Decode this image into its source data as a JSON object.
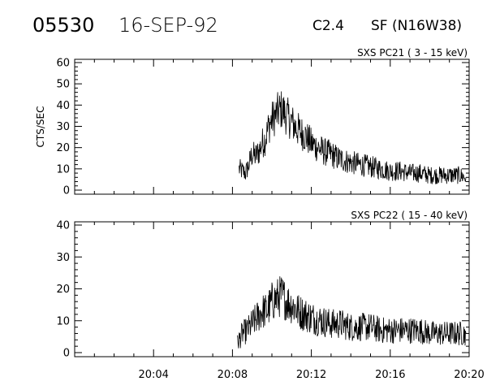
{
  "header": {
    "event_id": "05530",
    "date": "16-SEP-92",
    "flare_class": "C2.4",
    "flare_location": "SF (N16W38)"
  },
  "colors": {
    "background": "#ffffff",
    "foreground": "#000000"
  },
  "chart_data": [
    {
      "type": "line",
      "title": "SXS PC21  (  3 - 15 keV)",
      "ylabel": "CTS/SEC",
      "xlabel": "",
      "xlim": [
        "20:00",
        "20:20"
      ],
      "ylim": [
        0,
        60
      ],
      "yticks": [
        0,
        10,
        20,
        30,
        40,
        50,
        60
      ],
      "xticks": [
        "20:04",
        "20:08",
        "20:12",
        "20:16",
        "20:20"
      ],
      "grid": false,
      "series": [
        {
          "x": [
            "20:08:20",
            "20:08:30",
            "20:08:40",
            "20:08:50",
            "20:09:00",
            "20:09:10",
            "20:09:20",
            "20:09:30",
            "20:09:40",
            "20:09:50",
            "20:10:00",
            "20:10:10",
            "20:10:20",
            "20:10:30",
            "20:10:40",
            "20:10:50",
            "20:11:00",
            "20:11:15",
            "20:11:30",
            "20:11:45",
            "20:12:00",
            "20:12:20",
            "20:12:40",
            "20:13:00",
            "20:13:20",
            "20:13:40",
            "20:14:00",
            "20:14:30",
            "20:15:00",
            "20:15:30",
            "20:16:00",
            "20:16:30",
            "20:17:00",
            "20:17:30",
            "20:18:00",
            "20:18:30",
            "20:19:00",
            "20:19:30",
            "20:19:50"
          ],
          "values": [
            10,
            9,
            8,
            12,
            17,
            16,
            18,
            22,
            24,
            30,
            33,
            35,
            37,
            38,
            36,
            34,
            32,
            29,
            27,
            25,
            22,
            20,
            18,
            17,
            15,
            14,
            13,
            12,
            11,
            10,
            9,
            9,
            8,
            8,
            7,
            7,
            7,
            7,
            6
          ]
        }
      ]
    },
    {
      "type": "line",
      "title": "SXS PC22  ( 15 - 40 keV)",
      "ylabel": "",
      "xlabel": "",
      "xlim": [
        "20:00",
        "20:20"
      ],
      "ylim": [
        0,
        40
      ],
      "yticks": [
        0,
        10,
        20,
        30,
        40
      ],
      "xticks": [
        "20:04",
        "20:08",
        "20:12",
        "20:16",
        "20:20"
      ],
      "grid": false,
      "series": [
        {
          "x": [
            "20:08:15",
            "20:08:30",
            "20:08:45",
            "20:09:00",
            "20:09:15",
            "20:09:30",
            "20:09:45",
            "20:10:00",
            "20:10:15",
            "20:10:30",
            "20:10:45",
            "20:11:00",
            "20:11:20",
            "20:11:40",
            "20:12:00",
            "20:12:30",
            "20:13:00",
            "20:13:30",
            "20:14:00",
            "20:14:30",
            "20:15:00",
            "20:15:30",
            "20:16:00",
            "20:16:30",
            "20:17:00",
            "20:17:30",
            "20:18:00",
            "20:18:30",
            "20:19:00",
            "20:19:30",
            "20:19:50"
          ],
          "values": [
            3,
            6,
            7,
            9,
            11,
            13,
            13,
            16,
            17,
            18,
            16,
            15,
            13,
            12,
            11,
            10,
            9,
            9,
            8,
            8,
            8,
            7,
            7,
            7,
            7,
            7,
            6,
            6,
            6,
            6,
            6
          ]
        }
      ]
    }
  ]
}
